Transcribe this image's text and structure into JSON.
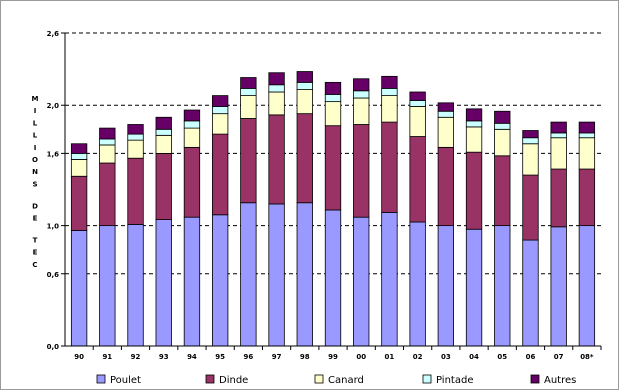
{
  "chart_data": {
    "type": "bar",
    "stacked": true,
    "title": "",
    "xlabel": "",
    "ylabel": "MILLIONS DE TEC",
    "ylim": [
      0,
      2.6
    ],
    "y_ticks": [
      "0,0",
      "0,6",
      "1,0",
      "1,6",
      "2,0",
      "2,6"
    ],
    "categories": [
      "90",
      "91",
      "92",
      "93",
      "94",
      "95",
      "96",
      "97",
      "98",
      "99",
      "00",
      "01",
      "02",
      "03",
      "04",
      "05",
      "06",
      "07",
      "08*"
    ],
    "series": [
      {
        "name": "Poulet",
        "color": "#9999ff",
        "values": [
          0.96,
          1.0,
          1.01,
          1.05,
          1.07,
          1.09,
          1.19,
          1.18,
          1.19,
          1.13,
          1.07,
          1.11,
          1.03,
          1.0,
          0.97,
          1.0,
          0.88,
          0.99,
          1.0
        ]
      },
      {
        "name": "Dinde",
        "color": "#993366",
        "values": [
          0.45,
          0.52,
          0.55,
          0.55,
          0.58,
          0.67,
          0.7,
          0.74,
          0.74,
          0.7,
          0.77,
          0.75,
          0.71,
          0.65,
          0.64,
          0.58,
          0.54,
          0.48,
          0.47
        ]
      },
      {
        "name": "Canard",
        "color": "#ffffcc",
        "values": [
          0.14,
          0.15,
          0.15,
          0.15,
          0.16,
          0.17,
          0.19,
          0.19,
          0.2,
          0.2,
          0.22,
          0.22,
          0.25,
          0.25,
          0.21,
          0.22,
          0.26,
          0.26,
          0.26
        ]
      },
      {
        "name": "Pintade",
        "color": "#ccffff",
        "values": [
          0.05,
          0.05,
          0.05,
          0.05,
          0.06,
          0.06,
          0.06,
          0.06,
          0.06,
          0.06,
          0.06,
          0.06,
          0.05,
          0.05,
          0.05,
          0.05,
          0.05,
          0.04,
          0.04
        ]
      },
      {
        "name": "Autres",
        "color": "#660066",
        "values": [
          0.08,
          0.09,
          0.08,
          0.1,
          0.09,
          0.09,
          0.09,
          0.1,
          0.09,
          0.1,
          0.1,
          0.1,
          0.07,
          0.07,
          0.1,
          0.1,
          0.06,
          0.09,
          0.09
        ]
      }
    ],
    "grid": true,
    "legend_position": "bottom"
  }
}
